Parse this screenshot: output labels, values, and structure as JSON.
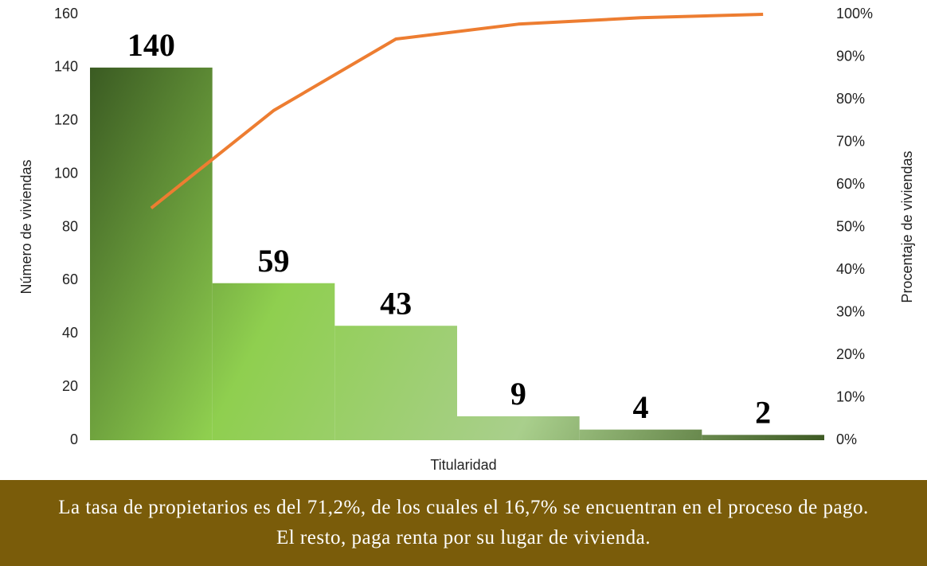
{
  "chart_data": {
    "type": "pareto",
    "xlabel": "Titularidad",
    "ylabel": "Número de viviendas",
    "y2label": "Procentaje de viviendas",
    "note": "La tasa de propietarios es del 71,2%, de los cuales el 16,7% se encuentran en el proceso de pago. El resto, paga renta por su lugar de vivienda.",
    "categories": [
      null,
      null,
      null,
      null,
      null,
      null
    ],
    "series": [
      {
        "type": "bar",
        "gradient": [
          "#3a5a22",
          "#8fcf4f",
          "#a9cf8c",
          "#3e5a24"
        ],
        "values": [
          140,
          59,
          43,
          9,
          4,
          2
        ]
      },
      {
        "type": "line",
        "axis": "y2",
        "color": "#ed7d31",
        "values": [
          54.5,
          77.4,
          94.2,
          97.7,
          99.2,
          100
        ]
      }
    ],
    "ylim": [
      0,
      160
    ],
    "yticks": [
      0,
      20,
      40,
      60,
      80,
      100,
      120,
      140,
      160
    ],
    "y2lim": [
      0,
      100
    ],
    "y2ticks": [
      {
        "value": 0,
        "label": "0%"
      },
      {
        "value": 10,
        "label": "10%"
      },
      {
        "value": 20,
        "label": "20%"
      },
      {
        "value": 30,
        "label": "30%"
      },
      {
        "value": 40,
        "label": "40%"
      },
      {
        "value": 50,
        "label": "50%"
      },
      {
        "value": 60,
        "label": "60%"
      },
      {
        "value": 70,
        "label": "70%"
      },
      {
        "value": 80,
        "label": "80%"
      },
      {
        "value": 90,
        "label": "90%"
      },
      {
        "value": 100,
        "label": "100%"
      }
    ]
  }
}
